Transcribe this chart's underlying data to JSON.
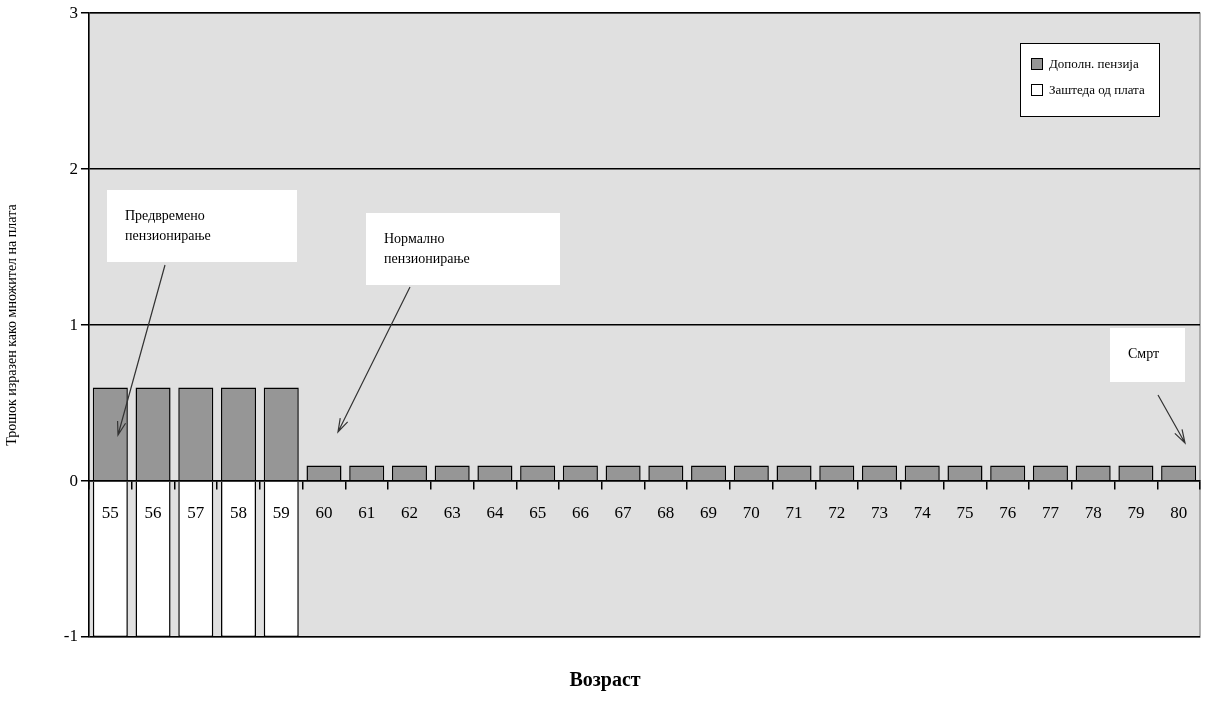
{
  "chart_data": {
    "type": "bar",
    "xlabel": "Возраст",
    "ylabel": "Трошок изразен како множител на плата",
    "categories": [
      "55",
      "56",
      "57",
      "58",
      "59",
      "60",
      "61",
      "62",
      "63",
      "64",
      "65",
      "66",
      "67",
      "68",
      "69",
      "70",
      "71",
      "72",
      "73",
      "74",
      "75",
      "76",
      "77",
      "78",
      "79",
      "80"
    ],
    "series": [
      {
        "name": "Дополн. пензија",
        "color": "#969696",
        "values": [
          0.6,
          0.6,
          0.6,
          0.6,
          0.6,
          0.1,
          0.1,
          0.1,
          0.1,
          0.1,
          0.1,
          0.1,
          0.1,
          0.1,
          0.1,
          0.1,
          0.1,
          0.1,
          0.1,
          0.1,
          0.1,
          0.1,
          0.1,
          0.1,
          0.1,
          0.1
        ]
      },
      {
        "name": "Заштеда од плата",
        "color": "#ffffff",
        "values": [
          -1,
          -1,
          -1,
          -1,
          -1,
          null,
          null,
          null,
          null,
          null,
          null,
          null,
          null,
          null,
          null,
          null,
          null,
          null,
          null,
          null,
          null,
          null,
          null,
          null,
          null,
          null
        ]
      }
    ],
    "stacked": true,
    "ylim": [
      -1,
      3
    ],
    "yticks": [
      -1,
      0,
      1,
      2,
      3
    ],
    "grid": "y",
    "legend": "top right",
    "annotations": [
      "Предвремено пензионирање",
      "Нормално пензионирање",
      "Смрт"
    ]
  }
}
